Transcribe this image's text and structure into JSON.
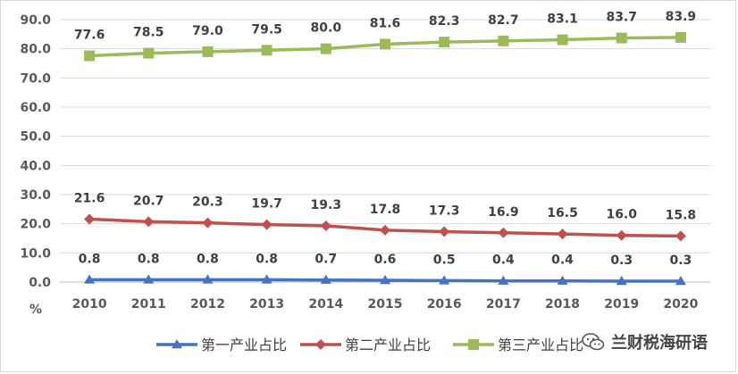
{
  "chart_data": {
    "type": "line",
    "unit_label": "%",
    "categories": [
      "2010",
      "2011",
      "2012",
      "2013",
      "2014",
      "2015",
      "2016",
      "2017",
      "2018",
      "2019",
      "2020"
    ],
    "ylim": [
      0,
      90
    ],
    "yticks": [
      "0.0",
      "10.0",
      "20.0",
      "30.0",
      "40.0",
      "50.0",
      "60.0",
      "70.0",
      "80.0",
      "90.0"
    ],
    "grid": true,
    "legend_position": "bottom",
    "series": [
      {
        "name": "第一产业占比",
        "color": "#4472c4",
        "marker": "triangle",
        "values": [
          0.8,
          0.8,
          0.8,
          0.8,
          0.7,
          0.6,
          0.5,
          0.4,
          0.4,
          0.3,
          0.3
        ],
        "labels": [
          "0.8",
          "0.8",
          "0.8",
          "0.8",
          "0.7",
          "0.6",
          "0.5",
          "0.4",
          "0.4",
          "0.3",
          "0.3"
        ]
      },
      {
        "name": "第二产业占比",
        "color": "#c0504d",
        "marker": "diamond",
        "values": [
          21.6,
          20.7,
          20.3,
          19.7,
          19.3,
          17.8,
          17.3,
          16.9,
          16.5,
          16.0,
          15.8
        ],
        "labels": [
          "21.6",
          "20.7",
          "20.3",
          "19.7",
          "19.3",
          "17.8",
          "17.3",
          "16.9",
          "16.5",
          "16.0",
          "15.8"
        ]
      },
      {
        "name": "第三产业占比",
        "color": "#9bbb59",
        "marker": "square",
        "values": [
          77.6,
          78.5,
          79.0,
          79.5,
          80.0,
          81.6,
          82.3,
          82.7,
          83.1,
          83.7,
          83.9
        ],
        "labels": [
          "77.6",
          "78.5",
          "79.0",
          "79.5",
          "80.0",
          "81.6",
          "82.3",
          "82.7",
          "83.1",
          "83.7",
          "83.9"
        ]
      }
    ]
  },
  "watermark": {
    "text": "兰财税海研语"
  }
}
